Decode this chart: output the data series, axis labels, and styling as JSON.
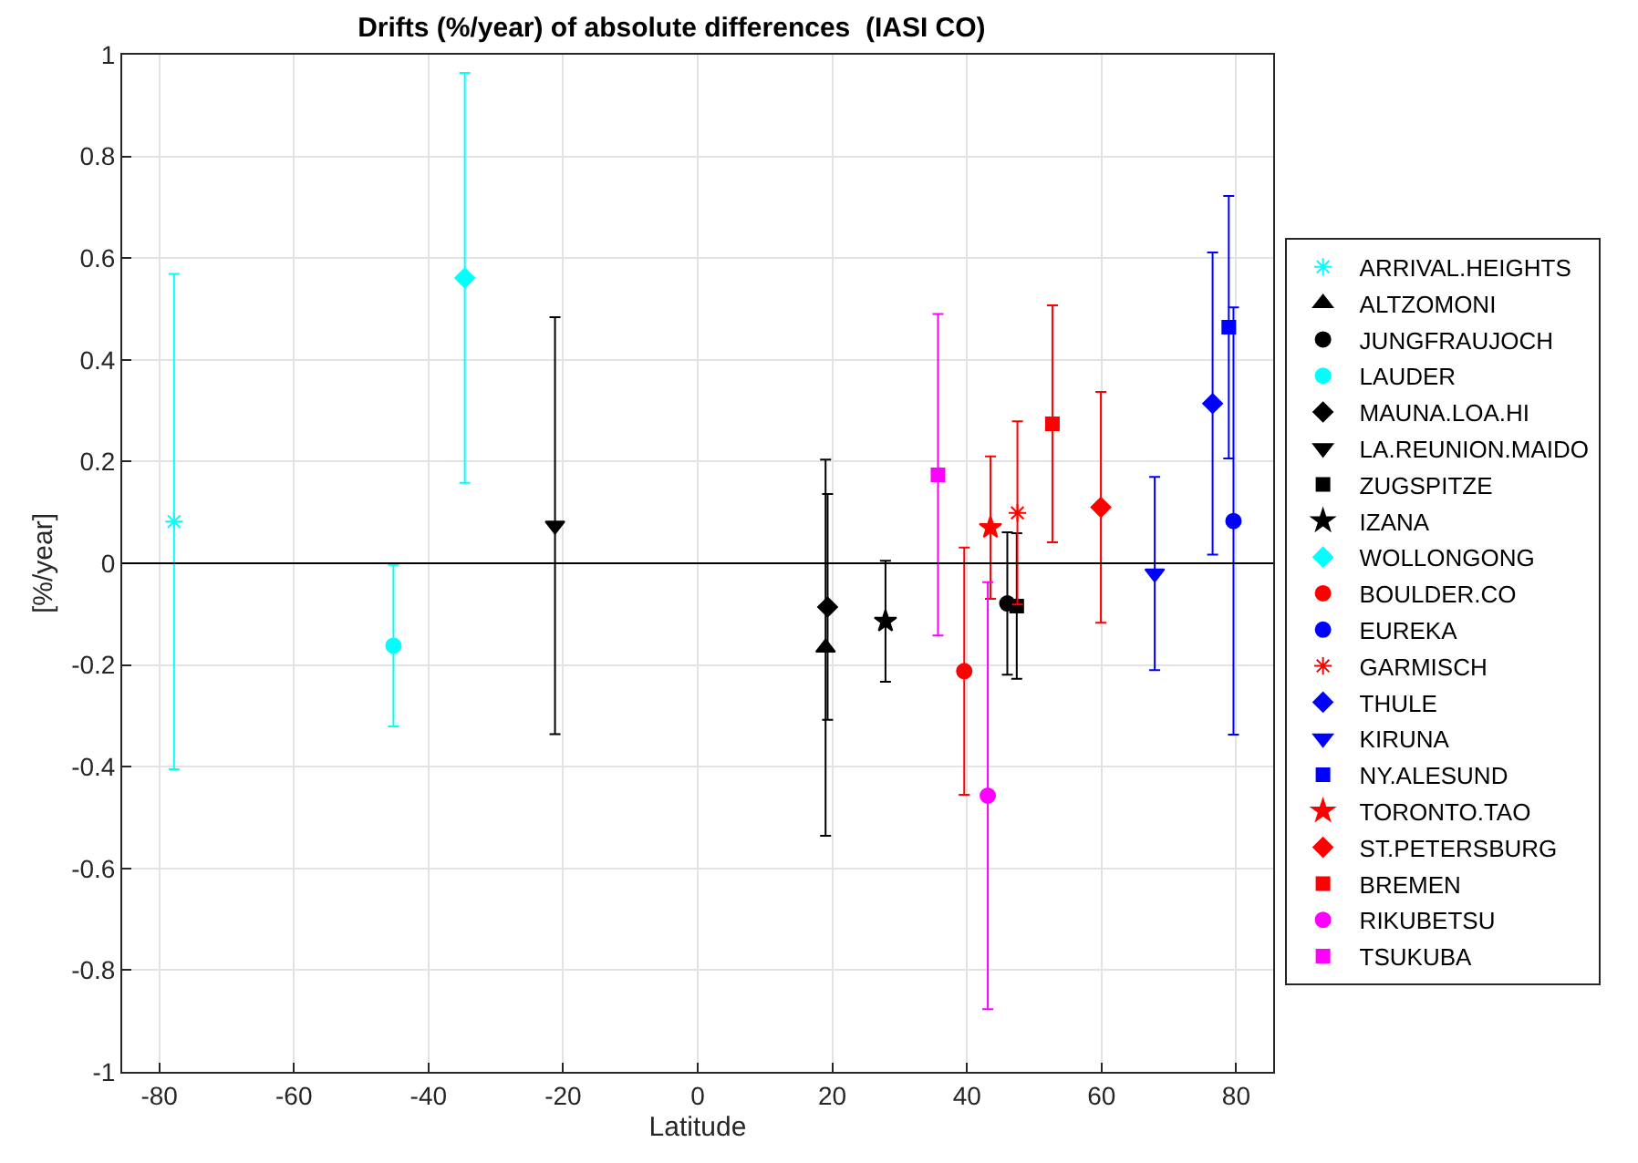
{
  "chart_data": {
    "type": "scatter",
    "title": "Drifts (%/year) of absolute differences  (IASI CO)",
    "xlabel": "Latitude",
    "ylabel": "[%/year]",
    "xlim": [
      -85.5,
      85.5
    ],
    "xticks": [
      -80,
      -60,
      -40,
      -20,
      0,
      20,
      40,
      60,
      80
    ],
    "ylim": [
      -1,
      1
    ],
    "yticks": [
      -1,
      -0.8,
      -0.6,
      -0.4,
      -0.2,
      0,
      0.2,
      0.4,
      0.6,
      0.8,
      1
    ],
    "grid": true,
    "legend": "right",
    "ref_lines": [
      {
        "axis": "y",
        "value": 0,
        "color": "#000000"
      }
    ],
    "series": [
      {
        "name": "ARRIVAL.HEIGHTS",
        "color": "#00ffff",
        "marker": "cross",
        "x": [
          -77.8
        ],
        "values": [
          0.082
        ],
        "errors": [
          0.487
        ]
      },
      {
        "name": "ALTZOMONI",
        "color": "#000000",
        "marker": "triangle",
        "x": [
          19.0
        ],
        "values": [
          -0.166
        ],
        "errors": [
          0.37
        ]
      },
      {
        "name": "JUNGFRAUJOCH",
        "color": "#000000",
        "marker": "circle",
        "x": [
          46.0
        ],
        "values": [
          -0.079
        ],
        "errors": [
          0.14
        ]
      },
      {
        "name": "LAUDER",
        "color": "#00ffff",
        "marker": "circle",
        "x": [
          -45.2
        ],
        "values": [
          -0.162
        ],
        "errors": [
          0.159
        ]
      },
      {
        "name": "MAUNA.LOA.HI",
        "color": "#000000",
        "marker": "diamond",
        "x": [
          19.3
        ],
        "values": [
          -0.086
        ],
        "errors": [
          0.222
        ]
      },
      {
        "name": "LA.REUNION.MAIDO",
        "color": "#000000",
        "marker": "triangle-down",
        "x": [
          -21.2
        ],
        "values": [
          0.074
        ],
        "errors": [
          0.41
        ]
      },
      {
        "name": "ZUGSPITZE",
        "color": "#000000",
        "marker": "square",
        "x": [
          47.4
        ],
        "values": [
          -0.084
        ],
        "errors": [
          0.143
        ]
      },
      {
        "name": "IZANA",
        "color": "#000000",
        "marker": "star",
        "x": [
          27.9
        ],
        "values": [
          -0.114
        ],
        "errors": [
          0.119
        ]
      },
      {
        "name": "WOLLONGONG",
        "color": "#00ffff",
        "marker": "diamond",
        "x": [
          -34.6
        ],
        "values": [
          0.561
        ],
        "errors": [
          0.403
        ]
      },
      {
        "name": "BOULDER.CO",
        "color": "#ff0000",
        "marker": "circle",
        "x": [
          39.6
        ],
        "values": [
          -0.212
        ],
        "errors": [
          0.243
        ]
      },
      {
        "name": "EUREKA",
        "color": "#0000ff",
        "marker": "circle",
        "x": [
          79.6
        ],
        "values": [
          0.083
        ],
        "errors": [
          0.42
        ]
      },
      {
        "name": "GARMISCH",
        "color": "#ff0000",
        "marker": "cross",
        "x": [
          47.5
        ],
        "values": [
          0.099
        ],
        "errors": [
          0.18
        ]
      },
      {
        "name": "THULE",
        "color": "#0000ff",
        "marker": "diamond",
        "x": [
          76.5
        ],
        "values": [
          0.314
        ],
        "errors": [
          0.297
        ]
      },
      {
        "name": "KIRUNA",
        "color": "#0000ff",
        "marker": "triangle-down",
        "x": [
          67.9
        ],
        "values": [
          -0.02
        ],
        "errors": [
          0.19
        ]
      },
      {
        "name": "NY.ALESUND",
        "color": "#0000ff",
        "marker": "square",
        "x": [
          78.9
        ],
        "values": [
          0.464
        ],
        "errors": [
          0.258
        ]
      },
      {
        "name": "TORONTO.TAO",
        "color": "#ff0000",
        "marker": "star",
        "x": [
          43.5
        ],
        "values": [
          0.07
        ],
        "errors": [
          0.14
        ]
      },
      {
        "name": "ST.PETERSBURG",
        "color": "#ff0000",
        "marker": "diamond",
        "x": [
          59.9
        ],
        "values": [
          0.11
        ],
        "errors": [
          0.227
        ]
      },
      {
        "name": "BREMEN",
        "color": "#ff0000",
        "marker": "square",
        "x": [
          52.7
        ],
        "values": [
          0.274
        ],
        "errors": [
          0.233
        ]
      },
      {
        "name": "RIKUBETSU",
        "color": "#ff00ff",
        "marker": "circle",
        "x": [
          43.1
        ],
        "values": [
          -0.457
        ],
        "errors": [
          0.42
        ]
      },
      {
        "name": "TSUKUBA",
        "color": "#ff00ff",
        "marker": "square",
        "x": [
          35.7
        ],
        "values": [
          0.174
        ],
        "errors": [
          0.316
        ]
      }
    ]
  }
}
